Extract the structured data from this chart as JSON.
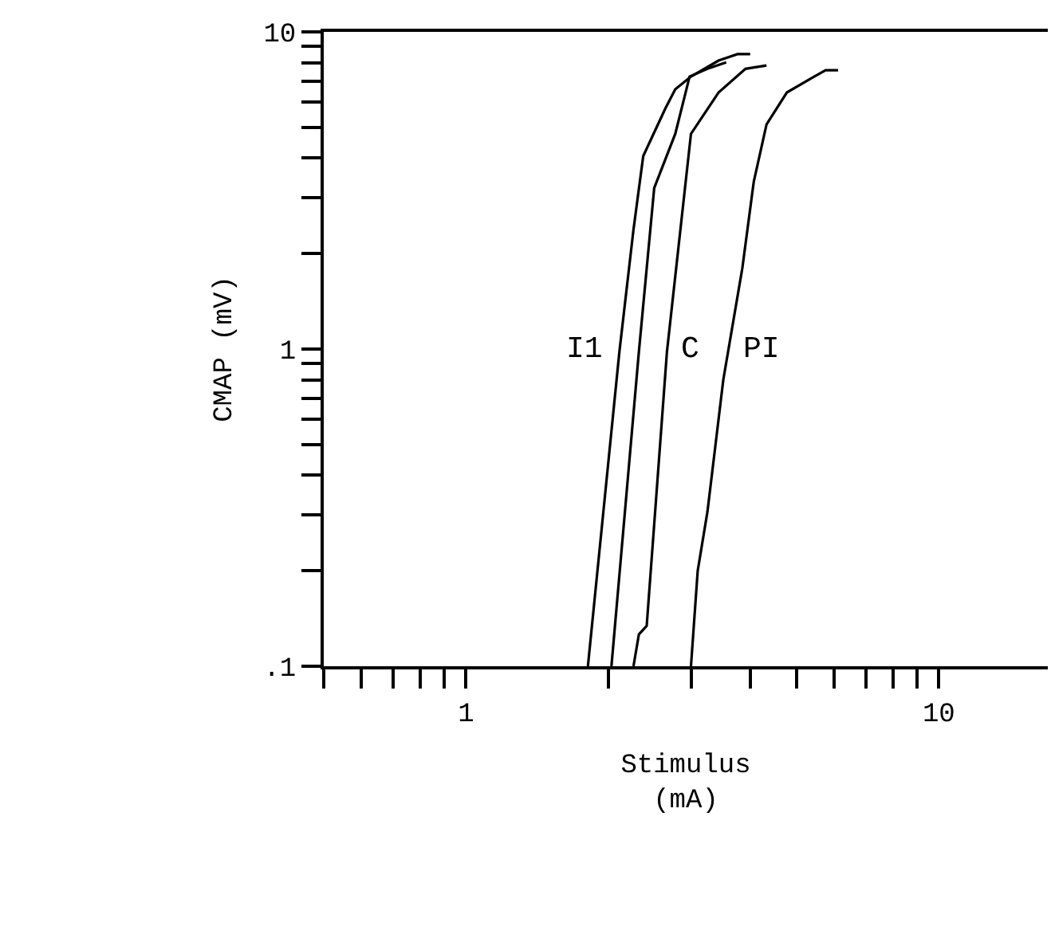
{
  "chart_data": {
    "type": "line",
    "xlabel": "Stimulus\n(mA)",
    "ylabel": "CMAP (mV)",
    "log": "xy",
    "marker": "none",
    "line_style": "solid",
    "xlim": [
      0.5,
      17
    ],
    "ylim": [
      0.1,
      10
    ],
    "xticks": [
      {
        "value": 0.5,
        "label": null
      },
      {
        "value": 0.6,
        "label": null
      },
      {
        "value": 0.7,
        "label": null
      },
      {
        "value": 0.8,
        "label": null
      },
      {
        "value": 0.9,
        "label": null
      },
      1,
      {
        "value": 2,
        "label": null
      },
      {
        "value": 3,
        "label": null
      },
      {
        "value": 4,
        "label": null
      },
      {
        "value": 5,
        "label": null
      },
      {
        "value": 6,
        "label": null
      },
      {
        "value": 7,
        "label": null
      },
      {
        "value": 8,
        "label": null
      },
      {
        "value": 9,
        "label": null
      },
      10
    ],
    "yticks": [
      {
        "value": 0.1,
        "label": ".1"
      },
      {
        "value": 0.2,
        "label": null
      },
      {
        "value": 0.3,
        "label": null
      },
      {
        "value": 0.4,
        "label": null
      },
      {
        "value": 0.5,
        "label": null
      },
      {
        "value": 0.6,
        "label": null
      },
      {
        "value": 0.7,
        "label": null
      },
      {
        "value": 0.8,
        "label": null
      },
      {
        "value": 0.9,
        "label": null
      },
      1,
      {
        "value": 2,
        "label": null
      },
      {
        "value": 3,
        "label": null
      },
      {
        "value": 4,
        "label": null
      },
      {
        "value": 5,
        "label": null
      },
      {
        "value": 6,
        "label": null
      },
      {
        "value": 7,
        "label": null
      },
      {
        "value": 8,
        "label": null
      },
      {
        "value": 9,
        "label": null
      },
      10
    ],
    "series": [
      {
        "color": "#000000",
        "x": [
          1.81,
          2.11,
          2.26,
          2.37,
          2.64,
          2.77,
          2.99,
          3.42,
          3.75,
          3.99
        ],
        "values": [
          0.1,
          0.98,
          2.38,
          4.06,
          5.74,
          6.59,
          7.23,
          8.12,
          8.51,
          8.51
        ]
      },
      {
        "color": "#000000",
        "x": [
          2.03,
          2.32,
          2.5,
          2.77,
          2.97,
          3.24,
          3.55
        ],
        "values": [
          0.1,
          0.98,
          3.22,
          4.77,
          7.23,
          7.65,
          8.02
        ]
      },
      {
        "color": "#000000",
        "x": [
          2.26,
          2.32,
          2.41,
          2.66,
          2.99,
          3.42,
          3.9,
          4.32
        ],
        "values": [
          0.1,
          0.126,
          0.134,
          0.98,
          4.77,
          6.44,
          7.65,
          7.84
        ]
      },
      {
        "color": "#000000",
        "x": [
          2.99,
          3.09,
          3.24,
          3.5,
          3.84,
          4.06,
          4.32,
          4.77,
          5.45,
          5.76,
          6.12
        ],
        "values": [
          0.1,
          0.2,
          0.307,
          0.8,
          1.8,
          3.37,
          5.11,
          6.44,
          7.23,
          7.57,
          7.57
        ]
      }
    ],
    "annotations": [
      "I1",
      "C",
      "PI"
    ]
  }
}
